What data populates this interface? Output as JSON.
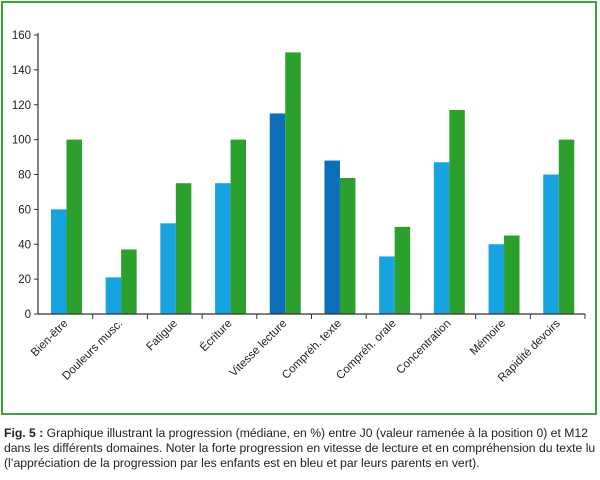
{
  "chart_data": {
    "type": "bar",
    "categories": [
      "Bien-être",
      "Douleurs musc.",
      "Fatigue",
      "Écriture",
      "Vitesse lecture",
      "Compréh. texte",
      "Compréh. orale",
      "Concentration",
      "Mémoire",
      "Rapidité devoirs"
    ],
    "series": [
      {
        "values": [
          60,
          21,
          52,
          75,
          115,
          88,
          33,
          87,
          40,
          80
        ]
      },
      {
        "values": [
          100,
          37,
          75,
          100,
          150,
          78,
          50,
          117,
          45,
          100
        ]
      }
    ],
    "highlight_categories": [
      "Vitesse lecture",
      "Compréh. texte"
    ],
    "colors": {
      "series_1": "#17a2e0",
      "series_1_highlight": "#0a6eb8",
      "series_2": "#2ca02c",
      "frame": "#3aa63a",
      "axis": "#333333"
    },
    "title": "",
    "xlabel": "",
    "ylabel": "",
    "ylim": [
      0,
      160
    ],
    "yticks": [
      0,
      20,
      40,
      60,
      80,
      100,
      120,
      140,
      160
    ],
    "grid": false,
    "legend": "none"
  },
  "caption": {
    "label": "Fig. 5 :",
    "text": " Graphique illustrant la progression (médiane, en %) entre J0 (valeur ramenée à la position 0) et M12 dans les différents domaines. Noter la forte progression en vitesse de lecture et en compréhension du texte lu (l’appréciation de la progression par les enfants est en bleu et par leurs parents en vert)."
  }
}
